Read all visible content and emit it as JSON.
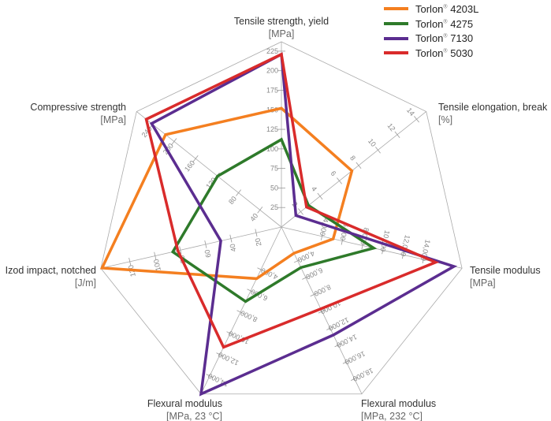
{
  "chart_data": {
    "type": "radar",
    "axes": [
      {
        "label": "Tensile strength, yield",
        "unit": "[MPa]",
        "max": 237,
        "ticks": [
          "25",
          "50",
          "75",
          "100",
          "125",
          "150",
          "175",
          "200",
          "225"
        ],
        "tick_values": [
          25,
          50,
          75,
          100,
          125,
          150,
          175,
          200,
          225
        ]
      },
      {
        "label": "Tensile elongation, break",
        "unit": "[%]",
        "max": 15,
        "ticks": [
          "2",
          "4",
          "6",
          "8",
          "10",
          "12",
          "14"
        ],
        "tick_values": [
          2,
          4,
          6,
          8,
          10,
          12,
          14
        ]
      },
      {
        "label": "Tensile modulus",
        "unit": "[MPa]",
        "max": 17800,
        "ticks": [
          "4,000",
          "6,000",
          "8,000",
          "10,000",
          "12,000",
          "14,000"
        ],
        "tick_values": [
          4000,
          6000,
          8000,
          10000,
          12000,
          14000
        ]
      },
      {
        "label": "Flexural modulus",
        "unit": "[MPa, 232 °C]",
        "max": 19800,
        "ticks": [
          "4,000",
          "6,000",
          "8,000",
          "10,000",
          "12,000",
          "14,000",
          "16,000",
          "18,000"
        ],
        "tick_values": [
          4000,
          6000,
          8000,
          10000,
          12000,
          14000,
          16000,
          18000
        ]
      },
      {
        "label": "Flexural modulus",
        "unit": "[MPa, 23 °C]",
        "max": 15700,
        "ticks": [
          "4,000",
          "6,000",
          "8,000",
          "10,000",
          "12,000",
          "14,000"
        ],
        "tick_values": [
          4000,
          6000,
          8000,
          10000,
          12000,
          14000
        ]
      },
      {
        "label": "Izod impact, notched",
        "unit": "[J/m]",
        "max": 143,
        "ticks": [
          "20",
          "40",
          "60",
          "80",
          "100",
          "120"
        ],
        "tick_values": [
          20,
          40,
          60,
          80,
          100,
          120
        ]
      },
      {
        "label": "Compressive strength",
        "unit": "[MPa]",
        "max": 270,
        "ticks": [
          "40",
          "80",
          "120",
          "160",
          "200",
          "240"
        ],
        "tick_values": [
          40,
          80,
          120,
          160,
          200,
          240
        ]
      }
    ],
    "series": [
      {
        "name": "Torlon® 4203L",
        "brand": "Torlon",
        "grade": "4203L",
        "color": "#f47f20",
        "values": [
          152,
          7.3,
          5100,
          3100,
          4850,
          142,
          216
        ]
      },
      {
        "name": "Torlon® 4275",
        "brand": "Torlon",
        "grade": "4275",
        "color": "#2e7a2a",
        "values": [
          112,
          2.8,
          9100,
          4800,
          7000,
          86,
          119
        ]
      },
      {
        "name": "Torlon® 7130",
        "brand": "Torlon",
        "grade": "7130",
        "color": "#5b2d90",
        "values": [
          221,
          1.5,
          17000,
          12800,
          15700,
          48,
          242
        ]
      },
      {
        "name": "Torlon® 5030",
        "brand": "Torlon",
        "grade": "5030",
        "color": "#d92b2b",
        "values": [
          221,
          2.6,
          15200,
          9700,
          11300,
          82,
          252
        ]
      }
    ],
    "grid": true,
    "legend_position": "top-right"
  }
}
